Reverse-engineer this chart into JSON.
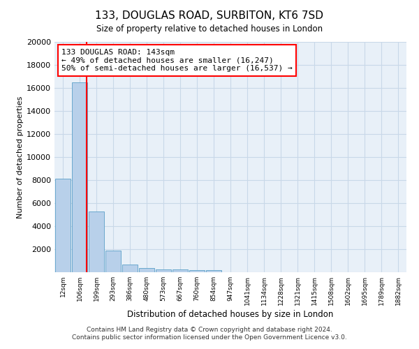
{
  "title": "133, DOUGLAS ROAD, SURBITON, KT6 7SD",
  "subtitle": "Size of property relative to detached houses in London",
  "xlabel": "Distribution of detached houses by size in London",
  "ylabel": "Number of detached properties",
  "categories": [
    "12sqm",
    "106sqm",
    "199sqm",
    "293sqm",
    "386sqm",
    "480sqm",
    "573sqm",
    "667sqm",
    "760sqm",
    "854sqm",
    "947sqm",
    "1041sqm",
    "1134sqm",
    "1228sqm",
    "1321sqm",
    "1415sqm",
    "1508sqm",
    "1602sqm",
    "1695sqm",
    "1789sqm",
    "1882sqm"
  ],
  "values": [
    8100,
    16500,
    5300,
    1850,
    650,
    350,
    270,
    220,
    190,
    165,
    0,
    0,
    0,
    0,
    0,
    0,
    0,
    0,
    0,
    0,
    0
  ],
  "bar_color": "#b8d0ea",
  "bar_edge_color": "#5a9fc8",
  "grid_color": "#c8d8e8",
  "vline_x": 1.4,
  "vline_color": "red",
  "annotation_text": "133 DOUGLAS ROAD: 143sqm\n← 49% of detached houses are smaller (16,247)\n50% of semi-detached houses are larger (16,537) →",
  "ylim": [
    0,
    20000
  ],
  "yticks": [
    0,
    2000,
    4000,
    6000,
    8000,
    10000,
    12000,
    14000,
    16000,
    18000,
    20000
  ],
  "footnote1": "Contains HM Land Registry data © Crown copyright and database right 2024.",
  "footnote2": "Contains public sector information licensed under the Open Government Licence v3.0.",
  "plot_bg_color": "#e8f0f8"
}
